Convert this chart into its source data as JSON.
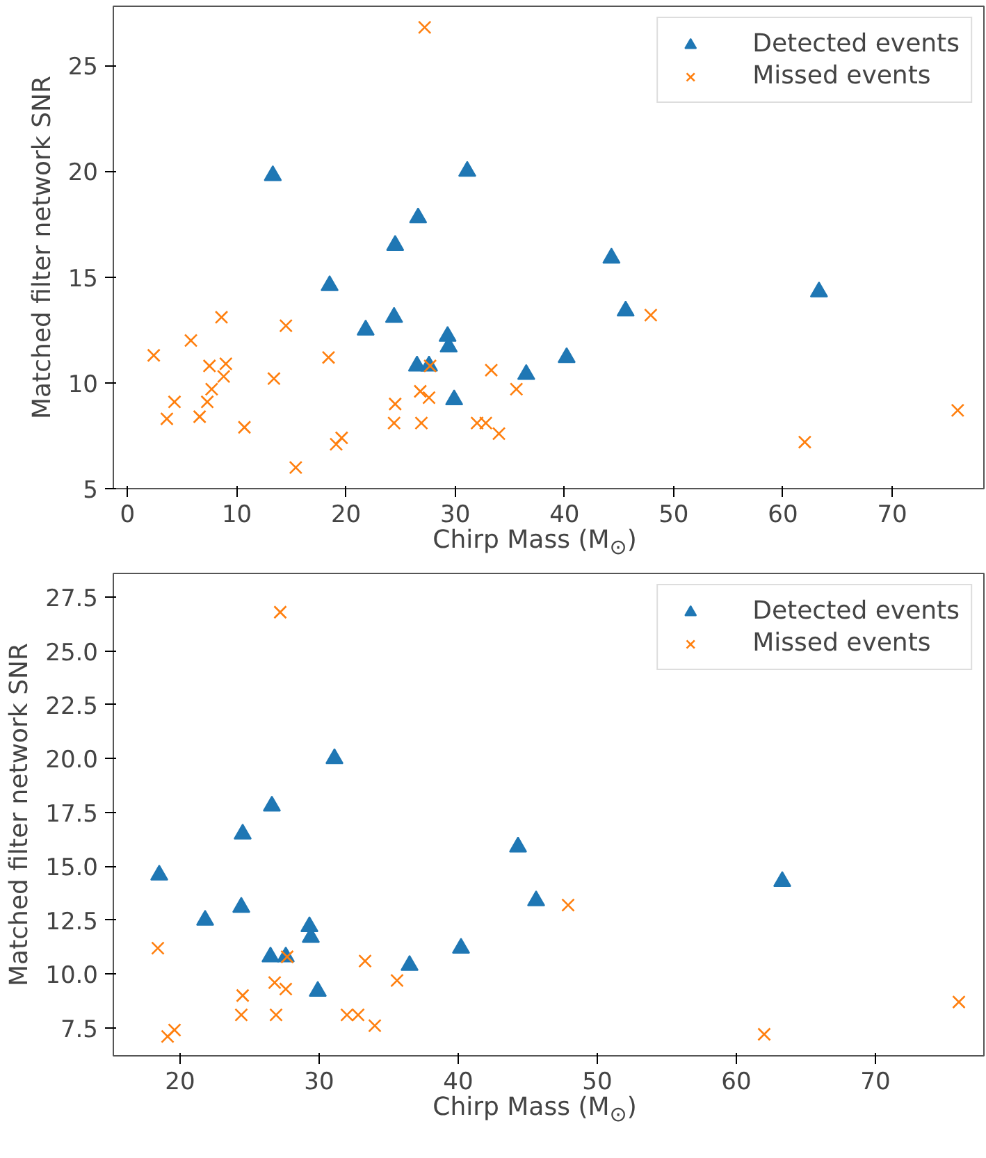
{
  "chart_data": [
    {
      "type": "scatter",
      "xlabel": "Chirp Mass (M$_{⊙}$)",
      "ylabel": "Matched filter network SNR",
      "xlim": [
        -1.3,
        78.4
      ],
      "ylim": [
        5.0,
        27.8
      ],
      "xticks": [
        0,
        10,
        20,
        30,
        40,
        50,
        60,
        70
      ],
      "yticks": [
        5,
        10,
        15,
        20,
        25
      ],
      "grid": false,
      "legend": "top right",
      "series": [
        {
          "name": "Detected events",
          "color": "#1f77b4",
          "marker": "triangle",
          "x": [
            13.3,
            31.1,
            26.6,
            24.5,
            18.5,
            24.4,
            21.8,
            29.3,
            29.4,
            26.5,
            27.6,
            29.9,
            36.5,
            40.2,
            44.3,
            45.6,
            63.3
          ],
          "values": [
            19.8,
            20.0,
            17.8,
            16.5,
            14.6,
            13.1,
            12.5,
            12.2,
            11.7,
            10.8,
            10.8,
            9.2,
            10.4,
            11.2,
            15.9,
            13.4,
            14.3
          ]
        },
        {
          "name": "Missed events",
          "color": "#ff7f0e",
          "marker": "x",
          "x": [
            2.4,
            3.6,
            4.3,
            5.8,
            6.6,
            7.3,
            7.5,
            7.7,
            8.6,
            8.8,
            9.0,
            10.7,
            13.4,
            14.5,
            15.4,
            18.4,
            19.1,
            19.6,
            24.4,
            24.5,
            26.8,
            26.9,
            27.2,
            27.6,
            27.7,
            32.0,
            32.8,
            33.3,
            34.0,
            35.6,
            47.9,
            62.0,
            76.0
          ],
          "values": [
            11.3,
            8.3,
            9.1,
            12.0,
            8.4,
            9.1,
            10.8,
            9.7,
            13.1,
            10.3,
            10.9,
            7.9,
            10.2,
            12.7,
            6.0,
            11.2,
            7.1,
            7.4,
            8.1,
            9.0,
            9.6,
            8.1,
            26.8,
            9.3,
            10.8,
            8.1,
            8.1,
            10.6,
            7.6,
            9.7,
            13.2,
            7.2,
            8.7
          ]
        }
      ]
    },
    {
      "type": "scatter",
      "xlabel": "Chirp Mass (M$_{⊙}$)",
      "ylabel": "Matched filter network SNR",
      "xlim": [
        15.2,
        77.8
      ],
      "ylim": [
        6.2,
        28.6
      ],
      "xticks": [
        20,
        30,
        40,
        50,
        60,
        70
      ],
      "yticks": [
        {
          "value": 7.5,
          "label": "7.5"
        },
        {
          "value": 10,
          "label": "10.0"
        },
        {
          "value": 12.5,
          "label": "12.5"
        },
        {
          "value": 15,
          "label": "15.0"
        },
        {
          "value": 17.5,
          "label": "17.5"
        },
        {
          "value": 20,
          "label": "20.0"
        },
        {
          "value": 22.5,
          "label": "22.5"
        },
        {
          "value": 25,
          "label": "25.0"
        },
        {
          "value": 27.5,
          "label": "27.5"
        }
      ],
      "grid": false,
      "legend": "top right",
      "series": [
        {
          "name": "Detected events",
          "color": "#1f77b4",
          "marker": "triangle",
          "x": [
            31.1,
            26.6,
            24.5,
            18.5,
            24.4,
            21.8,
            29.3,
            29.4,
            26.5,
            27.6,
            29.9,
            36.5,
            40.2,
            44.3,
            45.6,
            63.3
          ],
          "values": [
            20.0,
            17.8,
            16.5,
            14.6,
            13.1,
            12.5,
            12.2,
            11.7,
            10.8,
            10.8,
            9.2,
            10.4,
            11.2,
            15.9,
            13.4,
            14.3
          ]
        },
        {
          "name": "Missed events",
          "color": "#ff7f0e",
          "marker": "x",
          "x": [
            18.4,
            19.1,
            19.6,
            24.4,
            24.5,
            26.8,
            26.9,
            27.2,
            27.6,
            27.7,
            32.0,
            32.8,
            33.3,
            34.0,
            35.6,
            47.9,
            62.0,
            76.0
          ],
          "values": [
            11.2,
            7.1,
            7.4,
            8.1,
            9.0,
            9.6,
            8.1,
            26.8,
            9.3,
            10.8,
            8.1,
            8.1,
            10.6,
            7.6,
            9.7,
            13.2,
            7.2,
            8.7
          ]
        }
      ]
    }
  ]
}
